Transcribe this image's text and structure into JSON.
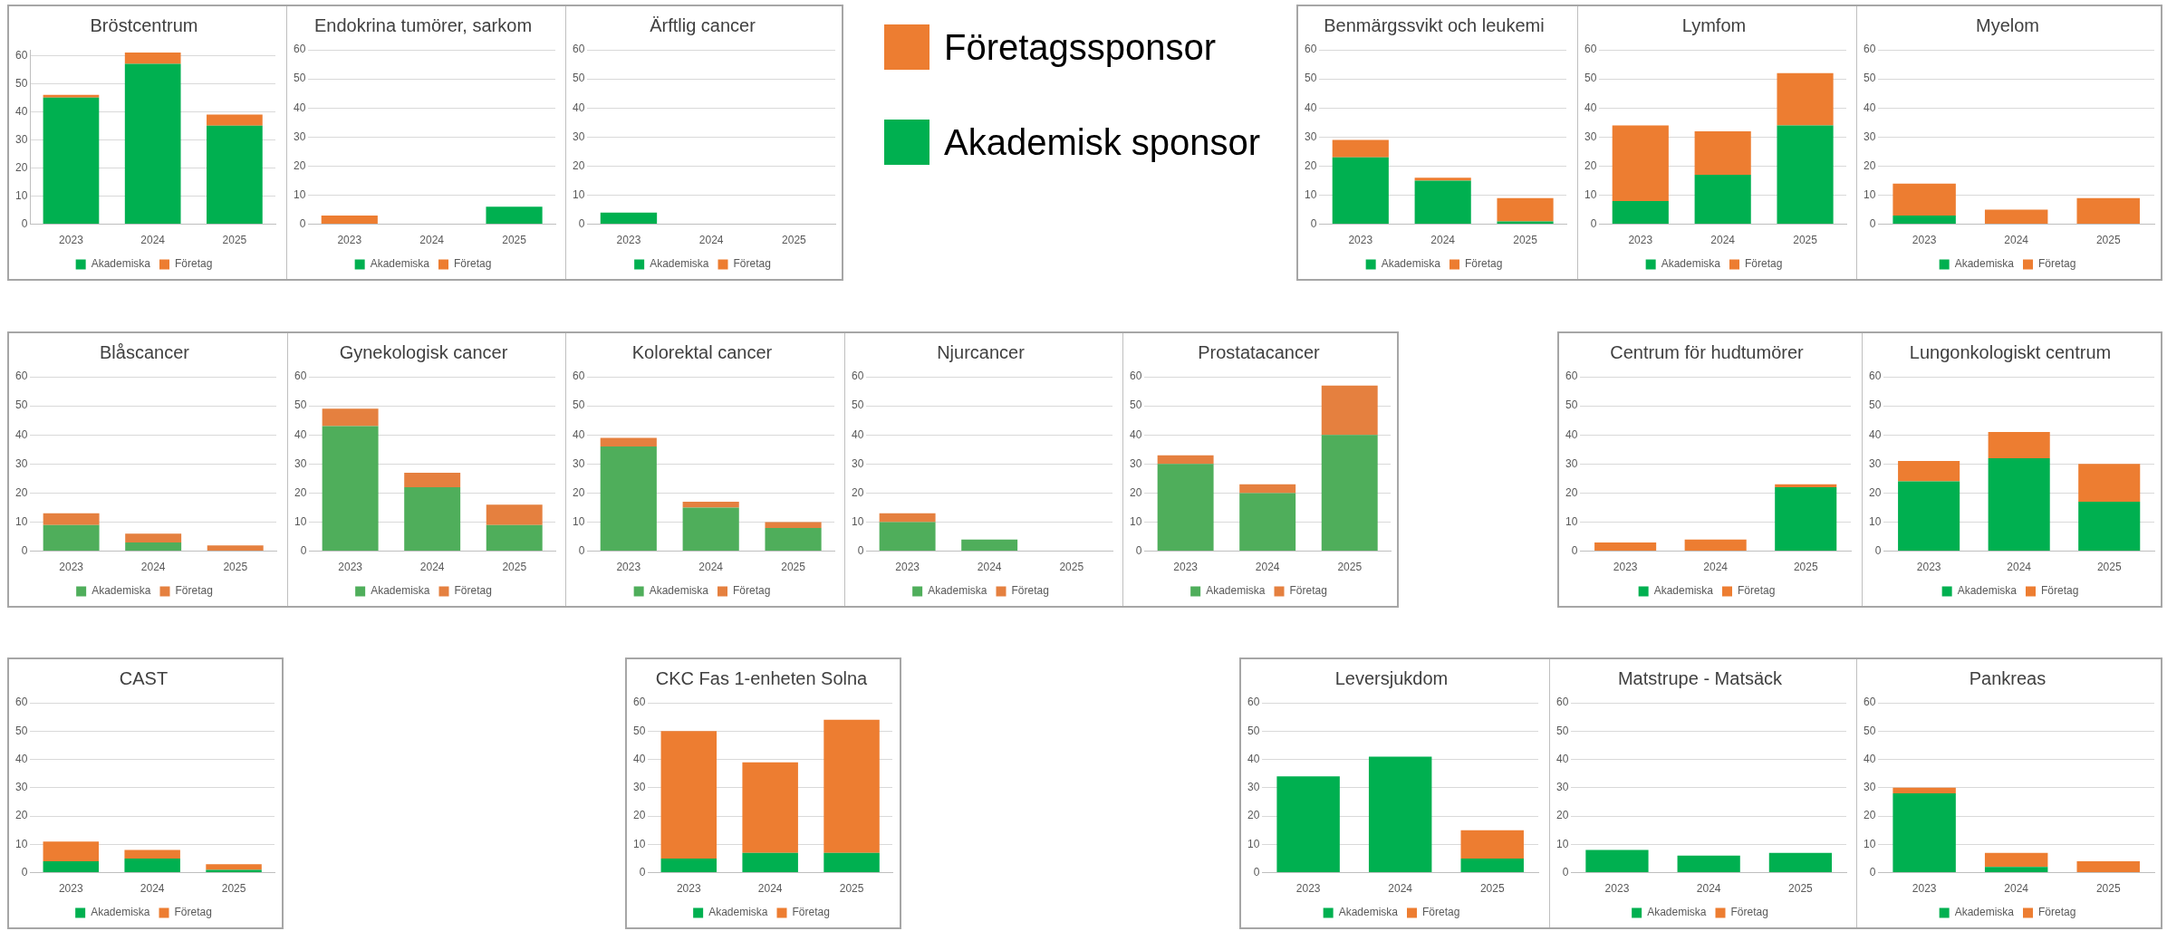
{
  "chart_data": [
    {
      "type": "bar",
      "title": "Bröstcentrum",
      "categories": [
        "2023",
        "2024",
        "2025"
      ],
      "stacked": true,
      "ylim": [
        0,
        62
      ],
      "yticks": [
        0,
        10,
        20,
        30,
        40,
        50,
        60
      ],
      "grid": "y",
      "legend": "bottom",
      "series": [
        {
          "name": "Akademiska",
          "color": "#00b050",
          "values": [
            45,
            57,
            35
          ]
        },
        {
          "name": "Företag",
          "color": "#ed7d31",
          "values": [
            1,
            4,
            4
          ]
        }
      ]
    },
    {
      "type": "bar",
      "title": "Endokrina tumörer, sarkom",
      "categories": [
        "2023",
        "2024",
        "2025"
      ],
      "stacked": true,
      "ylim": [
        0,
        60
      ],
      "yticks": [
        0,
        10,
        20,
        30,
        40,
        50,
        60
      ],
      "grid": "y",
      "legend": "bottom",
      "series": [
        {
          "name": "Akademiska",
          "color": "#00b050",
          "values": [
            0,
            0,
            6
          ]
        },
        {
          "name": "Företag",
          "color": "#ed7d31",
          "values": [
            3,
            0,
            0
          ]
        }
      ]
    },
    {
      "type": "bar",
      "title": "Ärftlig cancer",
      "categories": [
        "2023",
        "2024",
        "2025"
      ],
      "stacked": true,
      "ylim": [
        0,
        60
      ],
      "yticks": [
        0,
        10,
        20,
        30,
        40,
        50,
        60
      ],
      "grid": "y",
      "legend": "bottom",
      "series": [
        {
          "name": "Akademiska",
          "color": "#00b050",
          "values": [
            4,
            0,
            0
          ]
        },
        {
          "name": "Företag",
          "color": "#ed7d31",
          "values": [
            0,
            0,
            0
          ]
        }
      ]
    },
    {
      "type": "other",
      "legend": "top left",
      "series": [
        {
          "name": "Företagssponsor",
          "color": "#ed7d31"
        },
        {
          "name": "Akademisk sponsor",
          "color": "#00b050"
        }
      ]
    },
    {
      "type": "bar",
      "title": "Benmärgssvikt och leukemi",
      "categories": [
        "2023",
        "2024",
        "2025"
      ],
      "stacked": true,
      "ylim": [
        0,
        60
      ],
      "yticks": [
        0,
        10,
        20,
        30,
        40,
        50,
        60
      ],
      "grid": "y",
      "legend": "bottom",
      "series": [
        {
          "name": "Akademiska",
          "color": "#00b050",
          "values": [
            23,
            15,
            1
          ]
        },
        {
          "name": "Företag",
          "color": "#ed7d31",
          "values": [
            6,
            1,
            8
          ]
        }
      ]
    },
    {
      "type": "bar",
      "title": "Lymfom",
      "categories": [
        "2023",
        "2024",
        "2025"
      ],
      "stacked": true,
      "ylim": [
        0,
        60
      ],
      "yticks": [
        0,
        10,
        20,
        30,
        40,
        50,
        60
      ],
      "grid": "y",
      "legend": "bottom",
      "series": [
        {
          "name": "Akademiska",
          "color": "#00b050",
          "values": [
            8,
            17,
            34
          ]
        },
        {
          "name": "Företag",
          "color": "#ed7d31",
          "values": [
            26,
            15,
            18
          ]
        }
      ]
    },
    {
      "type": "bar",
      "title": "Myelom",
      "categories": [
        "2023",
        "2024",
        "2025"
      ],
      "stacked": true,
      "ylim": [
        0,
        60
      ],
      "yticks": [
        0,
        10,
        20,
        30,
        40,
        50,
        60
      ],
      "grid": "y",
      "legend": "bottom",
      "series": [
        {
          "name": "Akademiska",
          "color": "#00b050",
          "values": [
            3,
            0,
            0
          ]
        },
        {
          "name": "Företag",
          "color": "#ed7d31",
          "values": [
            11,
            5,
            9
          ]
        }
      ]
    },
    {
      "type": "bar",
      "title": "Blåscancer",
      "categories": [
        "2023",
        "2024",
        "2025"
      ],
      "stacked": true,
      "ylim": [
        0,
        60
      ],
      "yticks": [
        0,
        10,
        20,
        30,
        40,
        50,
        60
      ],
      "grid": "y",
      "legend": "bottom",
      "series": [
        {
          "name": "Akademiska",
          "color": "#4fae5b",
          "values": [
            9,
            3,
            0
          ]
        },
        {
          "name": "Företag",
          "color": "#e5803f",
          "values": [
            4,
            3,
            2
          ]
        }
      ]
    },
    {
      "type": "bar",
      "title": "Gynekologisk cancer",
      "categories": [
        "2023",
        "2024",
        "2025"
      ],
      "stacked": true,
      "ylim": [
        0,
        60
      ],
      "yticks": [
        0,
        10,
        20,
        30,
        40,
        50,
        60
      ],
      "grid": "y",
      "legend": "bottom",
      "series": [
        {
          "name": "Akademiska",
          "color": "#4fae5b",
          "values": [
            43,
            22,
            9
          ]
        },
        {
          "name": "Företag",
          "color": "#e5803f",
          "values": [
            6,
            5,
            7
          ]
        }
      ]
    },
    {
      "type": "bar",
      "title": "Kolorektal cancer",
      "categories": [
        "2023",
        "2024",
        "2025"
      ],
      "stacked": true,
      "ylim": [
        0,
        60
      ],
      "yticks": [
        0,
        10,
        20,
        30,
        40,
        50,
        60
      ],
      "grid": "y",
      "legend": "bottom",
      "series": [
        {
          "name": "Akademiska",
          "color": "#4fae5b",
          "values": [
            36,
            15,
            8
          ]
        },
        {
          "name": "Företag",
          "color": "#e5803f",
          "values": [
            3,
            2,
            2
          ]
        }
      ]
    },
    {
      "type": "bar",
      "title": "Njurcancer",
      "categories": [
        "2023",
        "2024",
        "2025"
      ],
      "stacked": true,
      "ylim": [
        0,
        60
      ],
      "yticks": [
        0,
        10,
        20,
        30,
        40,
        50,
        60
      ],
      "grid": "y",
      "legend": "bottom",
      "series": [
        {
          "name": "Akademiska",
          "color": "#4fae5b",
          "values": [
            10,
            4,
            0
          ]
        },
        {
          "name": "Företag",
          "color": "#e5803f",
          "values": [
            3,
            0,
            0
          ]
        }
      ]
    },
    {
      "type": "bar",
      "title": "Prostatacancer",
      "categories": [
        "2023",
        "2024",
        "2025"
      ],
      "stacked": true,
      "ylim": [
        0,
        60
      ],
      "yticks": [
        0,
        10,
        20,
        30,
        40,
        50,
        60
      ],
      "grid": "y",
      "legend": "bottom",
      "series": [
        {
          "name": "Akademiska",
          "color": "#4fae5b",
          "values": [
            30,
            20,
            40
          ]
        },
        {
          "name": "Företag",
          "color": "#e5803f",
          "values": [
            3,
            3,
            17
          ]
        }
      ]
    },
    {
      "type": "bar",
      "title": "Centrum för hudtumörer",
      "categories": [
        "2023",
        "2024",
        "2025"
      ],
      "stacked": true,
      "ylim": [
        0,
        60
      ],
      "yticks": [
        0,
        10,
        20,
        30,
        40,
        50,
        60
      ],
      "grid": "y",
      "legend": "bottom",
      "series": [
        {
          "name": "Akademiska",
          "color": "#00b050",
          "values": [
            0,
            0,
            22
          ]
        },
        {
          "name": "Företag",
          "color": "#ed7d31",
          "values": [
            3,
            4,
            1
          ]
        }
      ]
    },
    {
      "type": "bar",
      "title": "Lungonkologiskt centrum",
      "categories": [
        "2023",
        "2024",
        "2025"
      ],
      "stacked": true,
      "ylim": [
        0,
        60
      ],
      "yticks": [
        0,
        10,
        20,
        30,
        40,
        50,
        60
      ],
      "grid": "y",
      "legend": "bottom",
      "series": [
        {
          "name": "Akademiska",
          "color": "#00b050",
          "values": [
            24,
            32,
            17
          ]
        },
        {
          "name": "Företag",
          "color": "#ed7d31",
          "values": [
            7,
            9,
            13
          ]
        }
      ]
    },
    {
      "type": "bar",
      "title": "CAST",
      "categories": [
        "2023",
        "2024",
        "2025"
      ],
      "stacked": true,
      "ylim": [
        0,
        60
      ],
      "yticks": [
        0,
        10,
        20,
        30,
        40,
        50,
        60
      ],
      "grid": "y",
      "legend": "bottom",
      "series": [
        {
          "name": "Akademiska",
          "color": "#00b050",
          "values": [
            4,
            5,
            1
          ]
        },
        {
          "name": "Företag",
          "color": "#ed7d31",
          "values": [
            7,
            3,
            2
          ]
        }
      ]
    },
    {
      "type": "bar",
      "title": "CKC Fas 1-enheten Solna",
      "categories": [
        "2023",
        "2024",
        "2025"
      ],
      "stacked": true,
      "ylim": [
        0,
        60
      ],
      "yticks": [
        0,
        10,
        20,
        30,
        40,
        50,
        60
      ],
      "grid": "y",
      "legend": "bottom",
      "series": [
        {
          "name": "Akademiska",
          "color": "#00b050",
          "values": [
            5,
            7,
            7
          ]
        },
        {
          "name": "Företag",
          "color": "#ed7d31",
          "values": [
            45,
            32,
            47
          ]
        }
      ]
    },
    {
      "type": "bar",
      "title": "Leversjukdom",
      "categories": [
        "2023",
        "2024",
        "2025"
      ],
      "stacked": true,
      "ylim": [
        0,
        60
      ],
      "yticks": [
        0,
        10,
        20,
        30,
        40,
        50,
        60
      ],
      "grid": "y",
      "legend": "bottom",
      "series": [
        {
          "name": "Akademiska",
          "color": "#00b050",
          "values": [
            34,
            41,
            5
          ]
        },
        {
          "name": "Företag",
          "color": "#ed7d31",
          "values": [
            0,
            0,
            10
          ]
        }
      ]
    },
    {
      "type": "bar",
      "title": "Matstrupe - Matsäck",
      "categories": [
        "2023",
        "2024",
        "2025"
      ],
      "stacked": true,
      "ylim": [
        0,
        60
      ],
      "yticks": [
        0,
        10,
        20,
        30,
        40,
        50,
        60
      ],
      "grid": "y",
      "legend": "bottom",
      "series": [
        {
          "name": "Akademiska",
          "color": "#00b050",
          "values": [
            8,
            6,
            7
          ]
        },
        {
          "name": "Företag",
          "color": "#ed7d31",
          "values": [
            0,
            0,
            0
          ]
        }
      ]
    },
    {
      "type": "bar",
      "title": "Pankreas",
      "categories": [
        "2023",
        "2024",
        "2025"
      ],
      "stacked": true,
      "ylim": [
        0,
        60
      ],
      "yticks": [
        0,
        10,
        20,
        30,
        40,
        50,
        60
      ],
      "grid": "y",
      "legend": "bottom",
      "series": [
        {
          "name": "Akademiska",
          "color": "#00b050",
          "values": [
            28,
            2,
            0
          ]
        },
        {
          "name": "Företag",
          "color": "#ed7d31",
          "values": [
            2,
            5,
            4
          ]
        }
      ]
    }
  ]
}
